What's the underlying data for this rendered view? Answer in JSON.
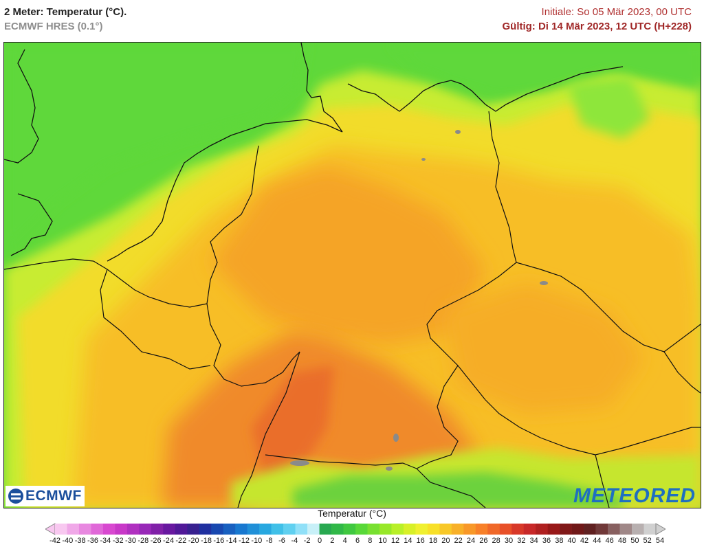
{
  "header": {
    "title": "2 Meter: Temperatur (°C).",
    "model": "ECMWF HRES (0.1°)",
    "initial": "Initiale: So 05 Mär 2023, 00 UTC",
    "valid": "Gültig: Di 14 Mär 2023, 12 UTC (H+228)"
  },
  "logos": {
    "ecmwf": "ECMWF",
    "meteored": "METEORED"
  },
  "legend": {
    "title": "Temperatur (°C)",
    "ticks": [
      "-42",
      "-40",
      "-38",
      "-36",
      "-34",
      "-32",
      "-30",
      "-28",
      "-26",
      "-24",
      "-22",
      "-20",
      "-18",
      "-16",
      "-14",
      "-12",
      "-10",
      "-8",
      "-6",
      "-4",
      "-2",
      "0",
      "2",
      "4",
      "6",
      "8",
      "10",
      "12",
      "14",
      "16",
      "18",
      "20",
      "22",
      "24",
      "26",
      "28",
      "30",
      "32",
      "34",
      "36",
      "38",
      "40",
      "42",
      "44",
      "46",
      "48",
      "50",
      "52",
      "54"
    ],
    "colors": [
      "#f8c8f0",
      "#f0a8e8",
      "#e888e0",
      "#e068d8",
      "#d848d0",
      "#c838c8",
      "#b030c0",
      "#9828b8",
      "#8020a8",
      "#6818a0",
      "#501898",
      "#382090",
      "#2030a0",
      "#1848b0",
      "#1860c0",
      "#1878d0",
      "#2090d8",
      "#28a8e0",
      "#40c0e8",
      "#60d0f0",
      "#90e0f8",
      "#c8f0f8",
      "#28a850",
      "#30b848",
      "#40c840",
      "#58d838",
      "#78e030",
      "#98e828",
      "#b8f028",
      "#d8f028",
      "#f0f030",
      "#f8e028",
      "#f8c828",
      "#f8b028",
      "#f89828",
      "#f88028",
      "#f06828",
      "#e85028",
      "#d83828",
      "#c82828",
      "#b02020",
      "#981818",
      "#801818",
      "#701818",
      "#602020",
      "#703838",
      "#886060",
      "#a08888",
      "#b8b0b0",
      "#d0d0d0"
    ]
  }
}
